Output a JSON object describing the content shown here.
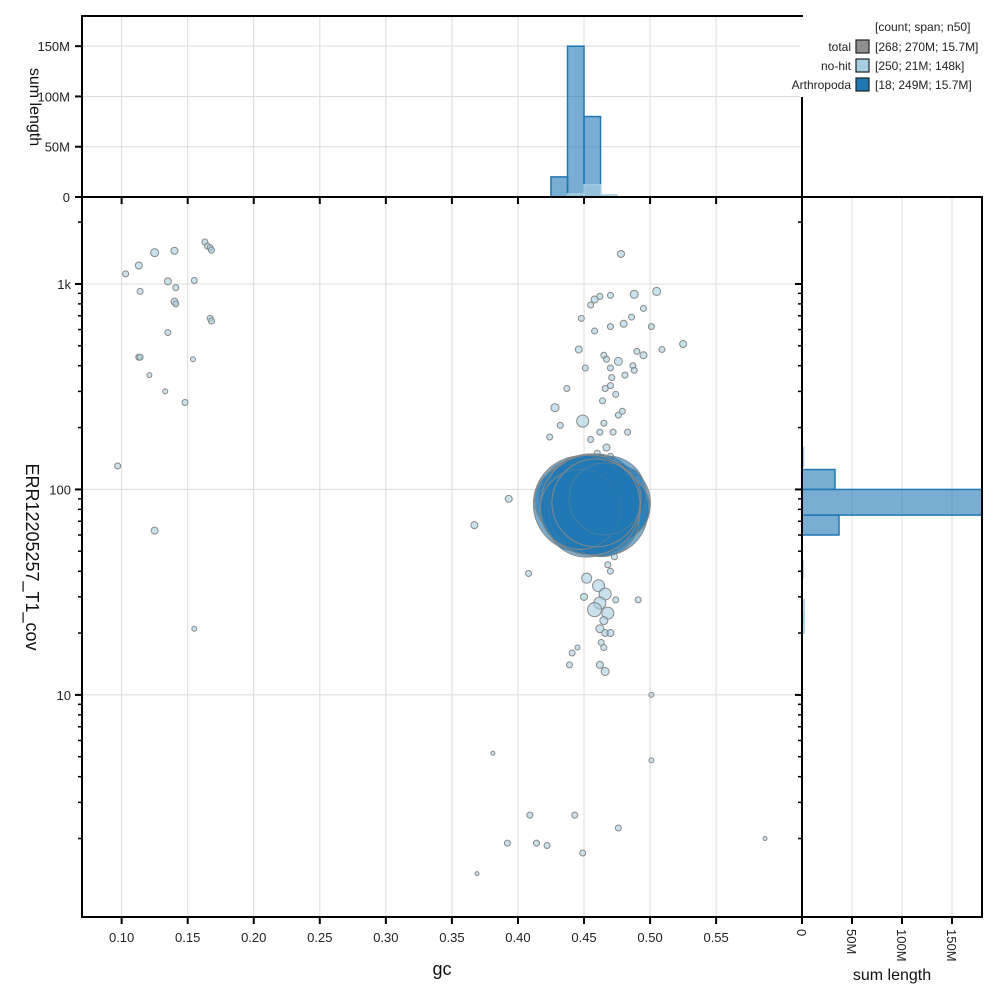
{
  "chart_data": [
    {
      "id": "main-scatter",
      "type": "scatter",
      "title": "",
      "xlabel": "gc",
      "ylabel": "ERR12205257_T1_cov",
      "xlim": [
        0.07,
        0.615
      ],
      "ylim_log": [
        0.83,
        2650
      ],
      "y_scale": "log",
      "x_ticks": [
        "0.10",
        "0.15",
        "0.20",
        "0.25",
        "0.30",
        "0.35",
        "0.40",
        "0.45",
        "0.50",
        "0.55"
      ],
      "x_tick_values": [
        0.1,
        0.15,
        0.2,
        0.25,
        0.3,
        0.35,
        0.4,
        0.45,
        0.5,
        0.55
      ],
      "y_ticks": [
        "1k",
        "100",
        "10"
      ],
      "y_tick_values": [
        1000,
        100,
        10
      ],
      "grid": true,
      "series": [
        {
          "name": "no-hit",
          "color": "#a6cee3",
          "points": [
            [
              0.097,
              130,
              3
            ],
            [
              0.103,
              1120,
              3
            ],
            [
              0.113,
              1230,
              3.5
            ],
            [
              0.114,
              920,
              3
            ],
            [
              0.125,
              1420,
              4
            ],
            [
              0.135,
              1030,
              3.5
            ],
            [
              0.14,
              1450,
              3.5
            ],
            [
              0.141,
              960,
              3
            ],
            [
              0.14,
              820,
              3.5
            ],
            [
              0.141,
              800,
              3
            ],
            [
              0.135,
              580,
              3
            ],
            [
              0.113,
              440,
              3
            ],
            [
              0.114,
              440,
              3
            ],
            [
              0.121,
              360,
              2.5
            ],
            [
              0.133,
              300,
              2.5
            ],
            [
              0.148,
              265,
              3
            ],
            [
              0.154,
              430,
              2.5
            ],
            [
              0.155,
              1040,
              3
            ],
            [
              0.163,
              1600,
              3
            ],
            [
              0.165,
              1530,
              3
            ],
            [
              0.167,
              1500,
              3
            ],
            [
              0.168,
              1460,
              3
            ],
            [
              0.167,
              680,
              3
            ],
            [
              0.168,
              660,
              3
            ],
            [
              0.125,
              63,
              3.5
            ],
            [
              0.155,
              21,
              2.5
            ],
            [
              0.367,
              67,
              3.5
            ],
            [
              0.393,
              90,
              3.5
            ],
            [
              0.408,
              39,
              3
            ],
            [
              0.432,
              205,
              3
            ],
            [
              0.424,
              180,
              3
            ],
            [
              0.428,
              250,
              4
            ],
            [
              0.437,
              310,
              3
            ],
            [
              0.449,
              215,
              6
            ],
            [
              0.451,
              390,
              3
            ],
            [
              0.446,
              480,
              3.5
            ],
            [
              0.458,
              590,
              3
            ],
            [
              0.47,
              620,
              3
            ],
            [
              0.448,
              680,
              3
            ],
            [
              0.455,
              790,
              3
            ],
            [
              0.458,
              840,
              3.5
            ],
            [
              0.462,
              870,
              3
            ],
            [
              0.47,
              880,
              3
            ],
            [
              0.478,
              1400,
              3.5
            ],
            [
              0.488,
              890,
              4
            ],
            [
              0.505,
              920,
              4
            ],
            [
              0.495,
              760,
              3
            ],
            [
              0.486,
              690,
              3
            ],
            [
              0.48,
              640,
              3.5
            ],
            [
              0.501,
              620,
              3
            ],
            [
              0.509,
              480,
              3
            ],
            [
              0.525,
              510,
              3.5
            ],
            [
              0.495,
              450,
              3.5
            ],
            [
              0.465,
              450,
              3
            ],
            [
              0.467,
              430,
              3
            ],
            [
              0.47,
              390,
              3
            ],
            [
              0.471,
              350,
              3
            ],
            [
              0.476,
              420,
              4
            ],
            [
              0.487,
              400,
              3
            ],
            [
              0.481,
              360,
              3
            ],
            [
              0.488,
              380,
              3
            ],
            [
              0.49,
              470,
              3
            ],
            [
              0.47,
              320,
              3
            ],
            [
              0.466,
              310,
              3
            ],
            [
              0.474,
              290,
              3
            ],
            [
              0.464,
              270,
              3
            ],
            [
              0.476,
              230,
              3
            ],
            [
              0.479,
              240,
              3
            ],
            [
              0.465,
              210,
              3
            ],
            [
              0.462,
              190,
              3
            ],
            [
              0.472,
              190,
              3
            ],
            [
              0.483,
              190,
              3
            ],
            [
              0.455,
              175,
              3
            ],
            [
              0.467,
              160,
              3.5
            ],
            [
              0.46,
              150,
              3
            ],
            [
              0.47,
              145,
              3
            ],
            [
              0.463,
              130,
              3
            ],
            [
              0.475,
              120,
              3
            ],
            [
              0.488,
              120,
              3
            ],
            [
              0.48,
              110,
              3
            ],
            [
              0.449,
              73,
              3
            ],
            [
              0.47,
              70,
              3
            ],
            [
              0.481,
              62,
              3
            ],
            [
              0.464,
              58,
              3
            ],
            [
              0.467,
              52,
              3
            ],
            [
              0.473,
              47,
              3
            ],
            [
              0.468,
              43,
              3
            ],
            [
              0.47,
              40,
              3
            ],
            [
              0.474,
              29,
              3
            ],
            [
              0.452,
              37,
              5
            ],
            [
              0.461,
              34,
              6
            ],
            [
              0.466,
              31,
              6
            ],
            [
              0.45,
              30,
              3.5
            ],
            [
              0.462,
              28,
              6
            ],
            [
              0.458,
              26,
              7
            ],
            [
              0.468,
              25,
              6
            ],
            [
              0.465,
              23,
              4
            ],
            [
              0.462,
              21,
              4
            ],
            [
              0.466,
              20,
              3.5
            ],
            [
              0.47,
              20,
              3.5
            ],
            [
              0.463,
              18,
              3
            ],
            [
              0.465,
              17,
              3
            ],
            [
              0.441,
              16,
              3
            ],
            [
              0.445,
              17,
              2.5
            ],
            [
              0.462,
              14,
              3.5
            ],
            [
              0.466,
              13,
              4
            ],
            [
              0.439,
              14,
              3
            ],
            [
              0.491,
              29,
              3
            ],
            [
              0.501,
              10,
              2.5
            ],
            [
              0.381,
              5.2,
              2
            ],
            [
              0.501,
              4.8,
              2.5
            ],
            [
              0.409,
              2.6,
              3
            ],
            [
              0.443,
              2.6,
              3
            ],
            [
              0.392,
              1.9,
              3
            ],
            [
              0.414,
              1.9,
              3
            ],
            [
              0.422,
              1.85,
              3
            ],
            [
              0.449,
              1.7,
              3
            ],
            [
              0.476,
              2.25,
              3
            ],
            [
              0.587,
              2.0,
              2
            ],
            [
              0.369,
              1.35,
              2
            ]
          ]
        },
        {
          "name": "Arthropoda",
          "color": "#1f78b4",
          "points": [
            [
              0.448,
              85,
              48
            ],
            [
              0.455,
              90,
              45
            ],
            [
              0.462,
              88,
              42
            ],
            [
              0.465,
              78,
              44
            ],
            [
              0.445,
              92,
              38
            ],
            [
              0.47,
              86,
              40
            ],
            [
              0.452,
              75,
              42
            ],
            [
              0.46,
              95,
              40
            ],
            [
              0.44,
              88,
              36
            ],
            [
              0.468,
              95,
              38
            ],
            [
              0.458,
              80,
              46
            ],
            [
              0.474,
              82,
              34
            ],
            [
              0.45,
              98,
              36
            ],
            [
              0.463,
              72,
              38
            ],
            [
              0.455,
              84,
              50
            ],
            [
              0.447,
              80,
              40
            ],
            [
              0.466,
              90,
              36
            ],
            [
              0.459,
              86,
              44
            ]
          ]
        }
      ]
    },
    {
      "id": "top-histogram",
      "type": "bar",
      "xlabel": "",
      "ylabel": "sum length",
      "y_ticks": [
        "0",
        "50M",
        "100M",
        "150M"
      ],
      "y_tick_values": [
        0,
        50,
        100,
        150
      ],
      "ylim": [
        0,
        180
      ],
      "units": "M",
      "bin_width": 0.0125,
      "series": [
        {
          "name": "Arthropoda",
          "color": "#1f78b4",
          "bins": [
            [
              0.425,
              20
            ],
            [
              0.4375,
              150
            ],
            [
              0.45,
              80
            ]
          ]
        },
        {
          "name": "no-hit",
          "color": "#a6cee3",
          "bins": [
            [
              0.4375,
              3
            ],
            [
              0.45,
              12
            ],
            [
              0.4625,
              2
            ]
          ]
        }
      ]
    },
    {
      "id": "right-histogram",
      "type": "bar",
      "orientation": "horizontal",
      "xlabel": "sum length",
      "x_ticks": [
        "0",
        "50M",
        "100M",
        "150M"
      ],
      "x_tick_values": [
        0,
        50,
        100,
        150
      ],
      "xlim": [
        0,
        180
      ],
      "units": "M",
      "series": [
        {
          "name": "Arthropoda",
          "color": "#1f78b4",
          "bins": [
            [
              100,
              125,
              33
            ],
            [
              75,
              100,
              180
            ],
            [
              60,
              75,
              37
            ]
          ]
        },
        {
          "name": "no-hit",
          "color": "#a6cee3",
          "bins": [
            [
              130,
              160,
              1.5
            ],
            [
              37,
              45,
              1
            ],
            [
              22,
              29,
              2
            ],
            [
              20,
              25,
              2
            ]
          ]
        }
      ]
    }
  ],
  "legend": {
    "header": "[count; span; n50]",
    "items": [
      {
        "label": "total",
        "stats": "[268; 270M; 15.7M]",
        "color": "#909090"
      },
      {
        "label": "no-hit",
        "stats": "[250; 21M; 148k]",
        "color": "#a6cee3"
      },
      {
        "label": "Arthropoda",
        "stats": "[18; 249M; 15.7M]",
        "color": "#1f78b4"
      }
    ]
  }
}
